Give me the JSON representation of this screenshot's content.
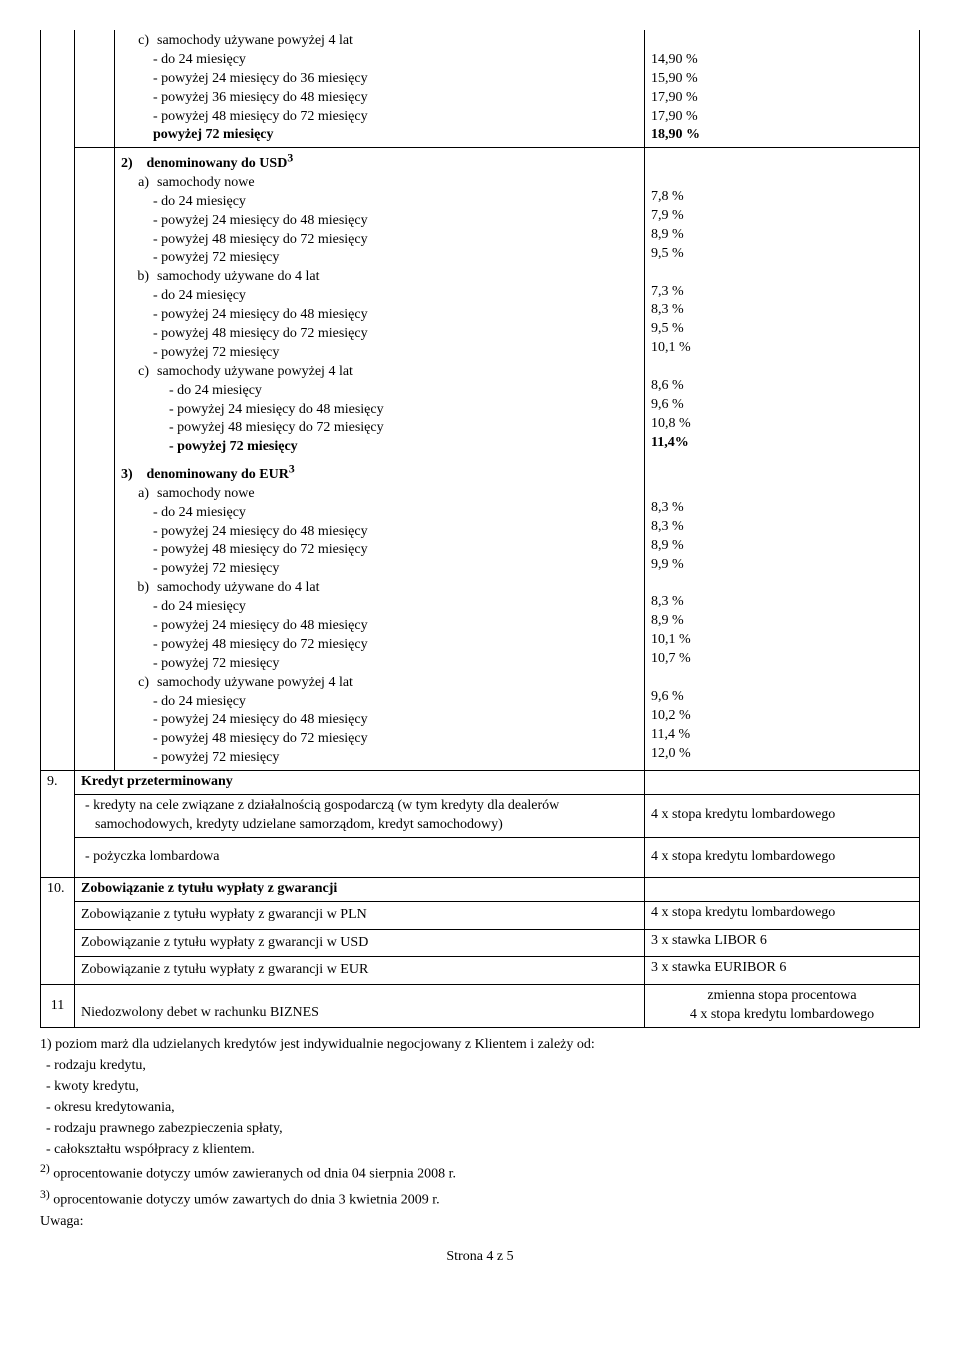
{
  "sec1c_title": "samochody używane powyżej 4 lat",
  "sec1c": [
    {
      "l": "-   do 24 miesięcy",
      "v": "14,90 %"
    },
    {
      "l": "-   powyżej 24 miesięcy do 36 miesięcy",
      "v": "15,90 %"
    },
    {
      "l": "-   powyżej 36 miesięcy do 48 miesięcy",
      "v": "17,90 %"
    },
    {
      "l": "-   powyżej 48 miesięcy do 72 miesięcy",
      "v": "17,90 %"
    },
    {
      "l": "powyżej 72 miesięcy",
      "v": "18,90 %",
      "bold": true
    }
  ],
  "sec2_title": "denominowany do USD",
  "sec2_sup": "3",
  "sec2a_title": "samochody nowe",
  "sec2a": [
    {
      "l": "-   do 24 miesięcy",
      "v": "7,8 %"
    },
    {
      "l": "-   powyżej 24 miesięcy do 48 miesięcy",
      "v": "7,9 %"
    },
    {
      "l": "-   powyżej 48 miesięcy do 72 miesięcy",
      "v": "8,9 %"
    },
    {
      "l": "-   powyżej 72 miesięcy",
      "v": "9,5 %"
    }
  ],
  "sec2b_title": "samochody używane do 4 lat",
  "sec2b": [
    {
      "l": "-   do 24 miesięcy",
      "v": "7,3 %"
    },
    {
      "l": "-   powyżej 24 miesięcy do 48 miesięcy",
      "v": "8,3 %"
    },
    {
      "l": "-   powyżej 48 miesięcy do 72 miesięcy",
      "v": "9,5 %"
    },
    {
      "l": "-   powyżej 72 miesięcy",
      "v": "10,1 %"
    }
  ],
  "sec2c_title": "samochody używane powyżej 4 lat",
  "sec2c": [
    {
      "l": "-   do 24 miesięcy",
      "v": "8,6 %"
    },
    {
      "l": "-   powyżej 24 miesięcy do 48 miesięcy",
      "v": "9,6 %"
    },
    {
      "l": "-   powyżej 48 miesięcy do 72 miesięcy",
      "v": "10,8 %"
    },
    {
      "l": "- powyżej 72 miesięcy",
      "v": "11,4%",
      "bold": true
    }
  ],
  "sec3_title": "denominowany do EUR",
  "sec3_sup": "3",
  "sec3a_title": "samochody nowe",
  "sec3a": [
    {
      "l": "-   do 24 miesięcy",
      "v": "8,3 %"
    },
    {
      "l": "-   powyżej 24 miesięcy do 48 miesięcy",
      "v": "8,3 %"
    },
    {
      "l": "-   powyżej 48 miesięcy do 72 miesięcy",
      "v": "8,9 %"
    },
    {
      "l": "-   powyżej 72 miesięcy",
      "v": "9,9 %"
    }
  ],
  "sec3b_title": "samochody używane do 4 lat",
  "sec3b": [
    {
      "l": "-   do 24 miesięcy",
      "v": "8,3 %"
    },
    {
      "l": "-   powyżej 24 miesięcy do 48 miesięcy",
      "v": "8,9 %"
    },
    {
      "l": "-   powyżej 48 miesięcy do 72 miesięcy",
      "v": "10,1 %"
    },
    {
      "l": "-   powyżej 72 miesięcy",
      "v": "10,7 %"
    }
  ],
  "sec3c_title": "samochody używane powyżej 4 lat",
  "sec3c": [
    {
      "l": "-   do 24 miesięcy",
      "v": "9,6 %"
    },
    {
      "l": "-   powyżej 24 miesięcy do 48 miesięcy",
      "v": "10,2 %"
    },
    {
      "l": "-   powyżej 48 miesięcy do 72 miesięcy",
      "v": "11,4 %"
    },
    {
      "l": "-   powyżej 72 miesięcy",
      "v": "12,0 %"
    }
  ],
  "row9_num": "9.",
  "row9_title": "Kredyt przeterminowany",
  "row9_item1": "- kredyty na cele związane z działalnością gospodarczą (w tym kredyty dla dealerów samochodowych, kredyty udzielane samorządom, kredyt samochodowy)",
  "row9_val1": "4 x stopa kredytu lombardowego",
  "row9_item2": "- pożyczka lombardowa",
  "row9_val2": "4 x stopa kredytu lombardowego",
  "row10_num": "10.",
  "row10_title": "Zobowiązanie z tytułu wypłaty z gwarancji",
  "row10_items": [
    {
      "l": "Zobowiązanie z tytułu wypłaty z gwarancji w PLN",
      "v": "4 x stopa kredytu lombardowego"
    },
    {
      "l": "Zobowiązanie z tytułu wypłaty z gwarancji w USD",
      "v": "3 x stawka LIBOR 6"
    },
    {
      "l": "Zobowiązanie z tytułu wypłaty z gwarancji w EUR",
      "v": "3 x stawka EURIBOR 6"
    }
  ],
  "row11_num": "11",
  "row11_title": "Niedozwolony debet w rachunku BIZNES",
  "row11_val_l1": "zmienna stopa procentowa",
  "row11_val_l2": "4 x stopa kredytu lombardowego",
  "fn1": "1) poziom marż dla udzielanych kredytów jest indywidualnie negocjowany z Klientem i zależy od:",
  "fn1_items": [
    "-    rodzaju kredytu,",
    "-    kwoty kredytu,",
    "-    okresu kredytowania,",
    "-    rodzaju prawnego zabezpieczenia spłaty,",
    "-    całokształtu współpracy z klientem."
  ],
  "fn2_pre": "2)",
  "fn2": " oprocentowanie dotyczy umów zawieranych od dnia 04 sierpnia 2008 r.",
  "fn3_pre": "3)",
  "fn3": " oprocentowanie dotyczy umów zawartych do dnia 3 kwietnia 2009 r.",
  "uwaga": "Uwaga:",
  "page": "Strona 4 z 5"
}
